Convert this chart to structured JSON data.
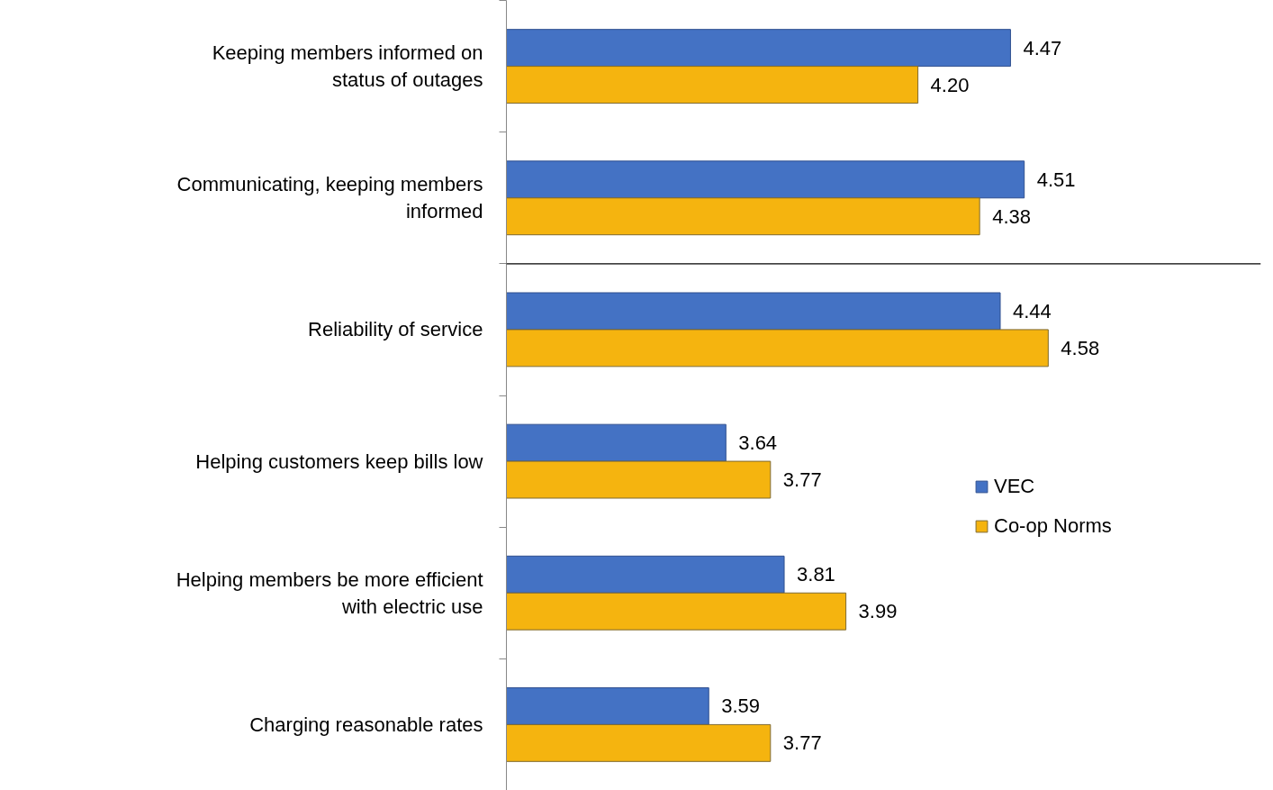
{
  "chart_data": {
    "type": "bar",
    "orientation": "horizontal",
    "categories": [
      "Keeping members informed on status of outages",
      "Communicating, keeping members informed",
      "Reliability of service",
      "Helping customers keep bills low",
      "Helping members be more efficient with electric use",
      "Charging reasonable rates"
    ],
    "series": [
      {
        "name": "VEC",
        "color": "#4472c4",
        "values": [
          4.47,
          4.51,
          4.44,
          3.64,
          3.81,
          3.59
        ],
        "value_labels": [
          "4.47",
          "4.51",
          "4.44",
          "3.64",
          "3.81",
          "3.59"
        ]
      },
      {
        "name": "Co-op Norms",
        "color": "#f5b40f",
        "values": [
          4.2,
          4.38,
          4.58,
          3.77,
          3.99,
          3.77
        ],
        "value_labels": [
          "4.20",
          "4.38",
          "4.58",
          "3.77",
          "3.99",
          "3.77"
        ]
      }
    ],
    "xlim": [
      3,
      5.2
    ],
    "tick_labels": "y",
    "grid": false,
    "legend": "right"
  }
}
